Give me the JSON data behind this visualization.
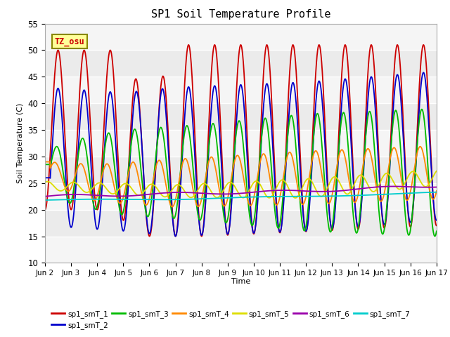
{
  "title": "SP1 Soil Temperature Profile",
  "xlabel": "Time",
  "ylabel": "Soil Temperature (C)",
  "ylim": [
    10,
    55
  ],
  "xlim": [
    0,
    15
  ],
  "xtick_labels": [
    "Jun 2",
    "Jun 3",
    "Jun 4",
    "Jun 5",
    "Jun 6",
    "Jun 7",
    "Jun 8",
    "Jun 9",
    "Jun 10",
    "Jun 11",
    "Jun 12",
    "Jun 13",
    "Jun 14",
    "Jun 15",
    "Jun 16",
    "Jun 17"
  ],
  "xtick_positions": [
    0,
    1,
    2,
    3,
    4,
    5,
    6,
    7,
    8,
    9,
    10,
    11,
    12,
    13,
    14,
    15
  ],
  "ytick_positions": [
    10,
    15,
    20,
    25,
    30,
    35,
    40,
    45,
    50,
    55
  ],
  "annotation_text": "TZ_osu",
  "series_colors": [
    "#cc0000",
    "#0000cc",
    "#00bb00",
    "#ff8800",
    "#dddd00",
    "#9900aa",
    "#00cccc"
  ],
  "series_labels": [
    "sp1_smT_1",
    "sp1_smT_2",
    "sp1_smT_3",
    "sp1_smT_4",
    "sp1_smT_5",
    "sp1_smT_6",
    "sp1_smT_7"
  ],
  "bg_color": "#ebebeb",
  "fig_color": "#ffffff",
  "grid_color": "#ffffff",
  "spine_color": "#aaaaaa"
}
